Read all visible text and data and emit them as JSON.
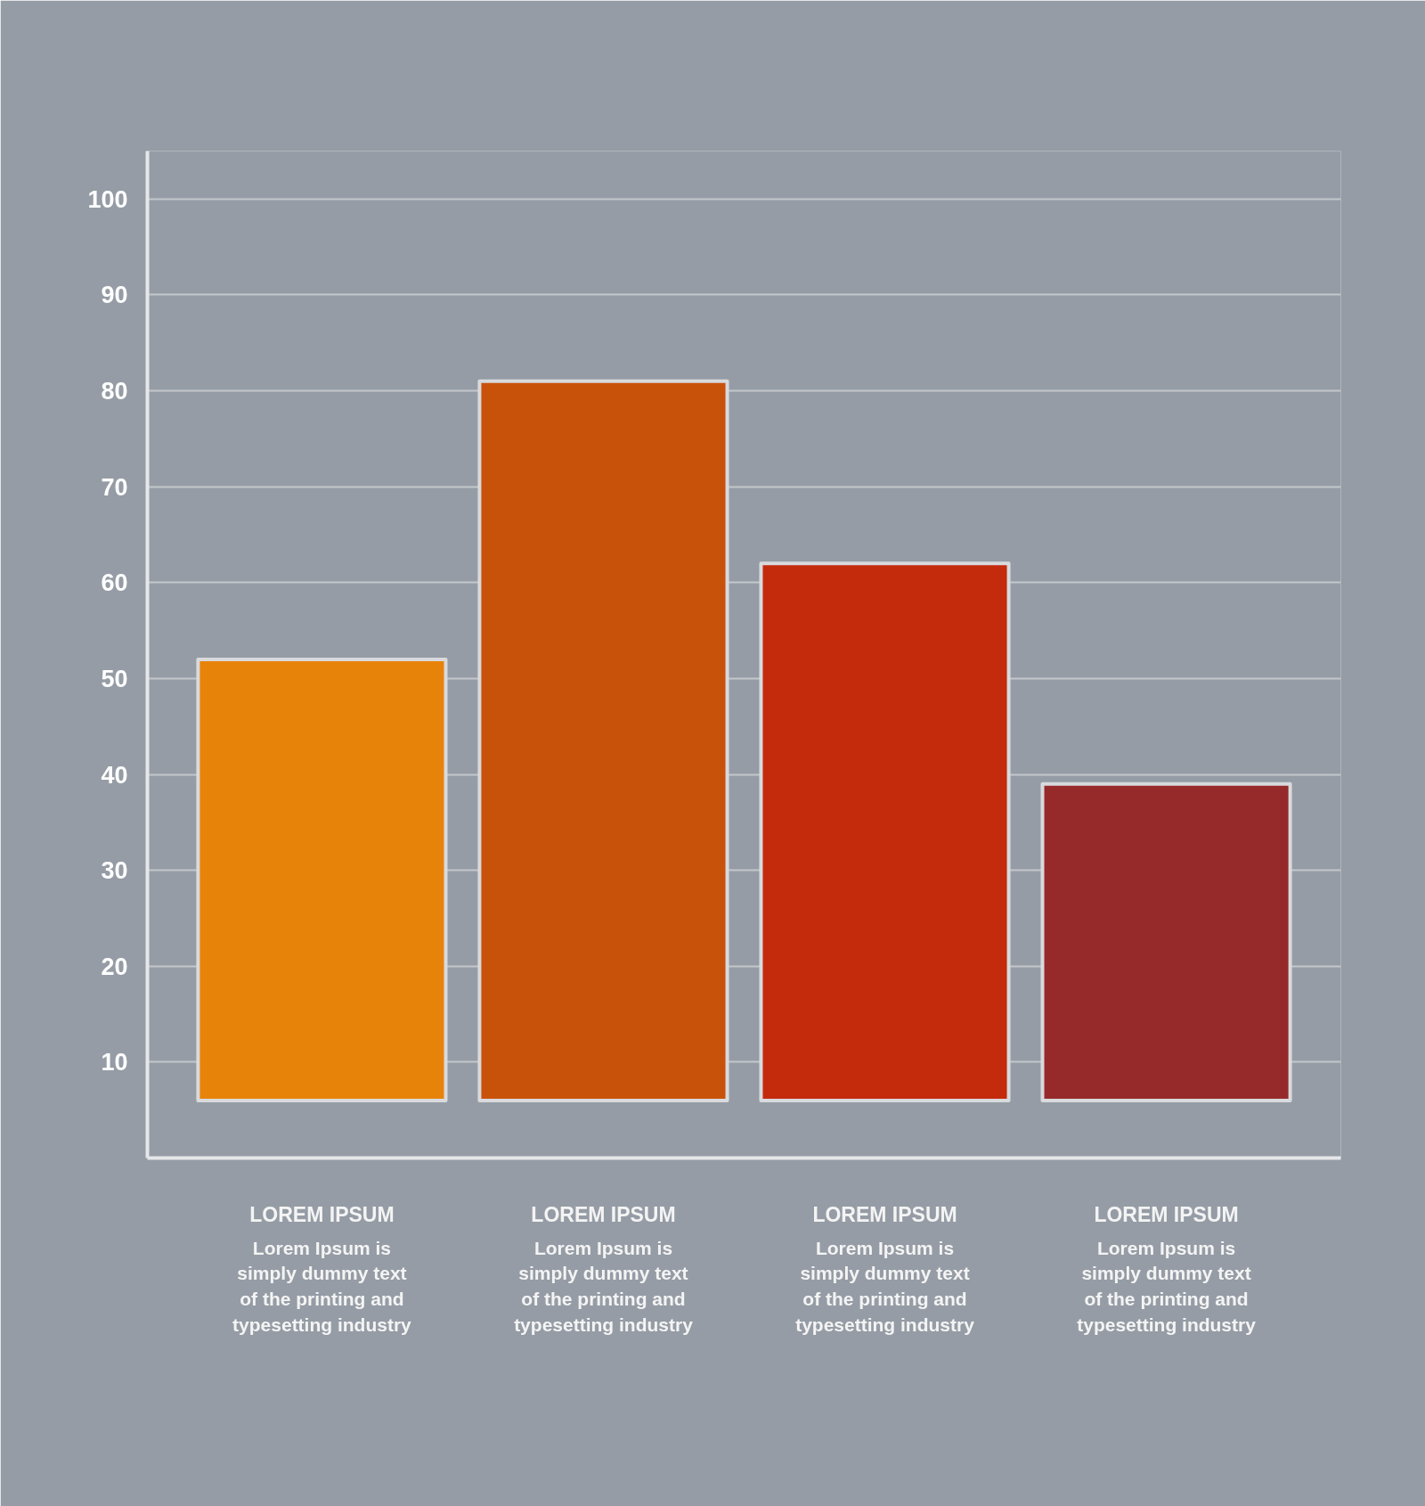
{
  "chart_data": {
    "type": "bar",
    "categories": [
      "LOREM IPSUM\nLorem Ipsum is\nsimply dummy text\nof the printing and\ntypesetting industry",
      "LOREM IPSUM\nLorem Ipsum is\nsimply dummy text\nof the printing and\ntypesetting industry",
      "LOREM IPSUM\nLorem Ipsum is\nsimply dummy text\nof the printing and\ntypesetting industry",
      "LOREM IPSUM\nLorem Ipsum is\nsimply dummy text\nof the printing and\ntypesetting industry"
    ],
    "values": [
      46,
      75,
      56,
      33
    ],
    "base": [
      6,
      6,
      6,
      6
    ],
    "colors": [
      "#e8830a",
      "#c9520a",
      "#c42a0c",
      "#962a2a"
    ],
    "ylim": [
      0,
      105
    ],
    "yticks": [
      10,
      20,
      30,
      40,
      50,
      60,
      70,
      80,
      90,
      100
    ],
    "grid": "y"
  }
}
